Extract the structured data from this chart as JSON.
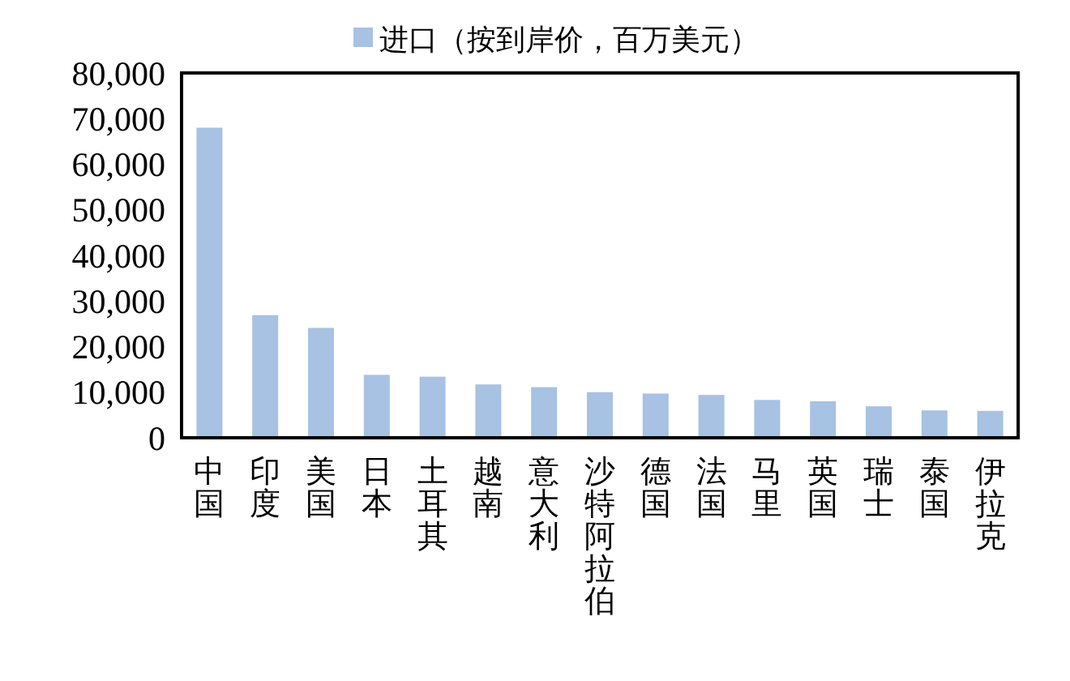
{
  "chart_data": {
    "type": "bar",
    "categories": [
      "中国",
      "印度",
      "美国",
      "日本",
      "土耳其",
      "越南",
      "意大利",
      "沙特阿拉伯",
      "德国",
      "法国",
      "马里",
      "英国",
      "瑞士",
      "泰国",
      "伊拉克"
    ],
    "series": [
      {
        "name": "进口（按到岸价，百万美元）",
        "color": "#a7c2e2",
        "values": [
          68000,
          26900,
          24100,
          13800,
          13400,
          11700,
          11100,
          10000,
          9700,
          9400,
          8300,
          8000,
          6900,
          6000,
          5900
        ]
      }
    ],
    "ylim": [
      0,
      80000
    ],
    "yticks": [
      {
        "value": 0,
        "label": "0"
      },
      {
        "value": 10000,
        "label": "10,000"
      },
      {
        "value": 20000,
        "label": "20,000"
      },
      {
        "value": 30000,
        "label": "30,000"
      },
      {
        "value": 40000,
        "label": "40,000"
      },
      {
        "value": 50000,
        "label": "50,000"
      },
      {
        "value": 60000,
        "label": "60,000"
      },
      {
        "value": 70000,
        "label": "70,000"
      },
      {
        "value": 80000,
        "label": "80,000"
      }
    ],
    "legend": "top",
    "grid": false
  }
}
